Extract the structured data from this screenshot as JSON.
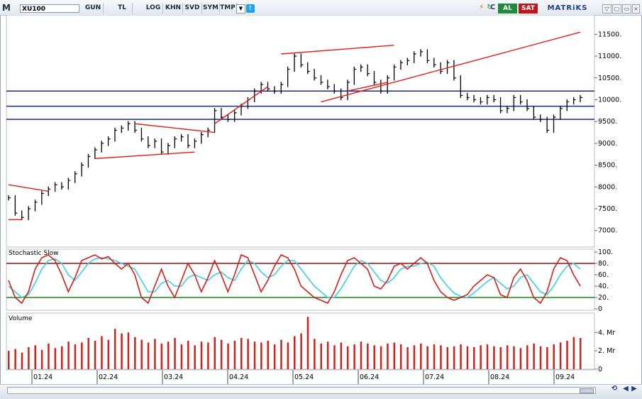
{
  "toolbar": {
    "m_label": "M",
    "symbol": "XU100",
    "buttons": [
      "GUN",
      "TL",
      "LOG",
      "KHN",
      "SVD",
      "SYM",
      "TMP"
    ],
    "buy_label": "AL",
    "sell_label": "SAT",
    "brand": "MATRiKS",
    "c_label": "C"
  },
  "colors": {
    "price": "#000000",
    "trend": "#e0201a",
    "level": "#1c2a8c",
    "stoch_k": "#d0201a",
    "stoch_d": "#3ccfe0",
    "volume": "#d0201a",
    "upper_band": "#8b1010",
    "lower_band": "#1a8a1a"
  },
  "panels": {
    "stoch_title": "Stochastic Slow",
    "volume_title": "Volume"
  },
  "chart_data": [
    {
      "type": "line",
      "name": "XU100 price",
      "x_ticks": [
        "01.24",
        "02.24",
        "03.24",
        "04.24",
        "05.24",
        "06.24",
        "07.24",
        "08.24",
        "09.24"
      ],
      "y_ticks": [
        "11500.",
        "11000.",
        "10500.",
        "10000.",
        "9500.",
        "9000.",
        "8500.",
        "8000.",
        "7500.",
        "7000."
      ],
      "ylim": [
        6800,
        11750
      ],
      "horizontal_levels": [
        10200,
        9850,
        9550
      ],
      "series_close": [
        7750,
        7400,
        7300,
        7500,
        7650,
        7850,
        7950,
        8050,
        8000,
        8150,
        8300,
        8500,
        8700,
        8850,
        9000,
        9100,
        9300,
        9350,
        9450,
        9300,
        9100,
        8950,
        9050,
        8800,
        8950,
        9100,
        9150,
        8950,
        9050,
        9200,
        9300,
        9750,
        9600,
        9550,
        9700,
        9850,
        10000,
        10200,
        10350,
        10250,
        10200,
        10350,
        10700,
        11000,
        10800,
        10650,
        10500,
        10400,
        10300,
        10200,
        10050,
        10400,
        10700,
        10750,
        10600,
        10400,
        10200,
        10500,
        10750,
        10850,
        10900,
        11050,
        11100,
        10900,
        10800,
        10650,
        10850,
        10500,
        10100,
        10050,
        10000,
        9950,
        10050,
        10000,
        9750,
        9800,
        10050,
        9950,
        9800,
        9600,
        9550,
        9300,
        9600,
        9800,
        9950,
        10000,
        10050
      ]
    },
    {
      "type": "line",
      "name": "Stochastic Slow",
      "y_ticks": [
        "100.",
        "80.",
        "60.",
        "40.",
        "20.",
        "0"
      ],
      "ylim": [
        0,
        100
      ],
      "bands": [
        80,
        20
      ],
      "k_values": [
        50,
        20,
        10,
        30,
        70,
        90,
        95,
        85,
        60,
        30,
        55,
        85,
        90,
        95,
        88,
        92,
        80,
        70,
        80,
        60,
        20,
        10,
        40,
        70,
        40,
        20,
        50,
        80,
        60,
        30,
        55,
        85,
        60,
        30,
        60,
        95,
        90,
        60,
        30,
        50,
        75,
        95,
        90,
        70,
        40,
        30,
        20,
        15,
        10,
        30,
        60,
        85,
        90,
        80,
        70,
        40,
        35,
        50,
        75,
        80,
        70,
        80,
        90,
        80,
        50,
        30,
        20,
        15,
        20,
        25,
        40,
        50,
        60,
        55,
        25,
        20,
        55,
        70,
        50,
        20,
        10,
        30,
        70,
        90,
        85,
        60,
        40
      ],
      "d_values": [
        40,
        30,
        20,
        25,
        45,
        70,
        85,
        88,
        80,
        60,
        50,
        65,
        80,
        88,
        90,
        88,
        85,
        80,
        75,
        70,
        50,
        30,
        30,
        45,
        50,
        40,
        40,
        55,
        60,
        55,
        50,
        60,
        65,
        55,
        50,
        70,
        85,
        80,
        65,
        55,
        60,
        75,
        85,
        85,
        70,
        55,
        40,
        30,
        20,
        20,
        35,
        55,
        75,
        85,
        80,
        65,
        50,
        45,
        55,
        70,
        75,
        75,
        80,
        82,
        75,
        55,
        40,
        28,
        22,
        20,
        28,
        38,
        48,
        55,
        45,
        35,
        40,
        55,
        60,
        45,
        30,
        25,
        40,
        60,
        75,
        80,
        70
      ]
    },
    {
      "type": "bar",
      "name": "Volume",
      "y_ticks": [
        "4. Mr",
        "2. Mr",
        "0"
      ],
      "ylim": [
        0,
        5.8
      ],
      "values": [
        2.0,
        2.2,
        1.8,
        2.4,
        2.6,
        2.1,
        2.8,
        2.3,
        2.5,
        3.0,
        2.7,
        2.9,
        3.4,
        3.1,
        3.6,
        3.2,
        4.4,
        3.9,
        4.0,
        3.5,
        3.2,
        2.9,
        3.3,
        2.8,
        3.0,
        3.4,
        2.7,
        3.1,
        2.6,
        3.0,
        2.9,
        3.5,
        3.2,
        2.8,
        3.1,
        3.4,
        3.3,
        3.0,
        2.9,
        3.1,
        2.7,
        3.2,
        2.9,
        3.6,
        3.9,
        5.7,
        3.3,
        2.8,
        3.0,
        2.6,
        2.9,
        2.5,
        2.7,
        3.0,
        2.8,
        2.6,
        2.5,
        2.8,
        2.9,
        2.7,
        2.4,
        2.6,
        2.8,
        2.5,
        2.7,
        2.6,
        2.4,
        2.5,
        2.7,
        2.5,
        2.4,
        2.6,
        2.7,
        2.5,
        2.4,
        2.6,
        2.5,
        2.3,
        2.6,
        2.8,
        2.5,
        2.4,
        2.7,
        2.9,
        3.1,
        3.5,
        3.4
      ]
    }
  ]
}
